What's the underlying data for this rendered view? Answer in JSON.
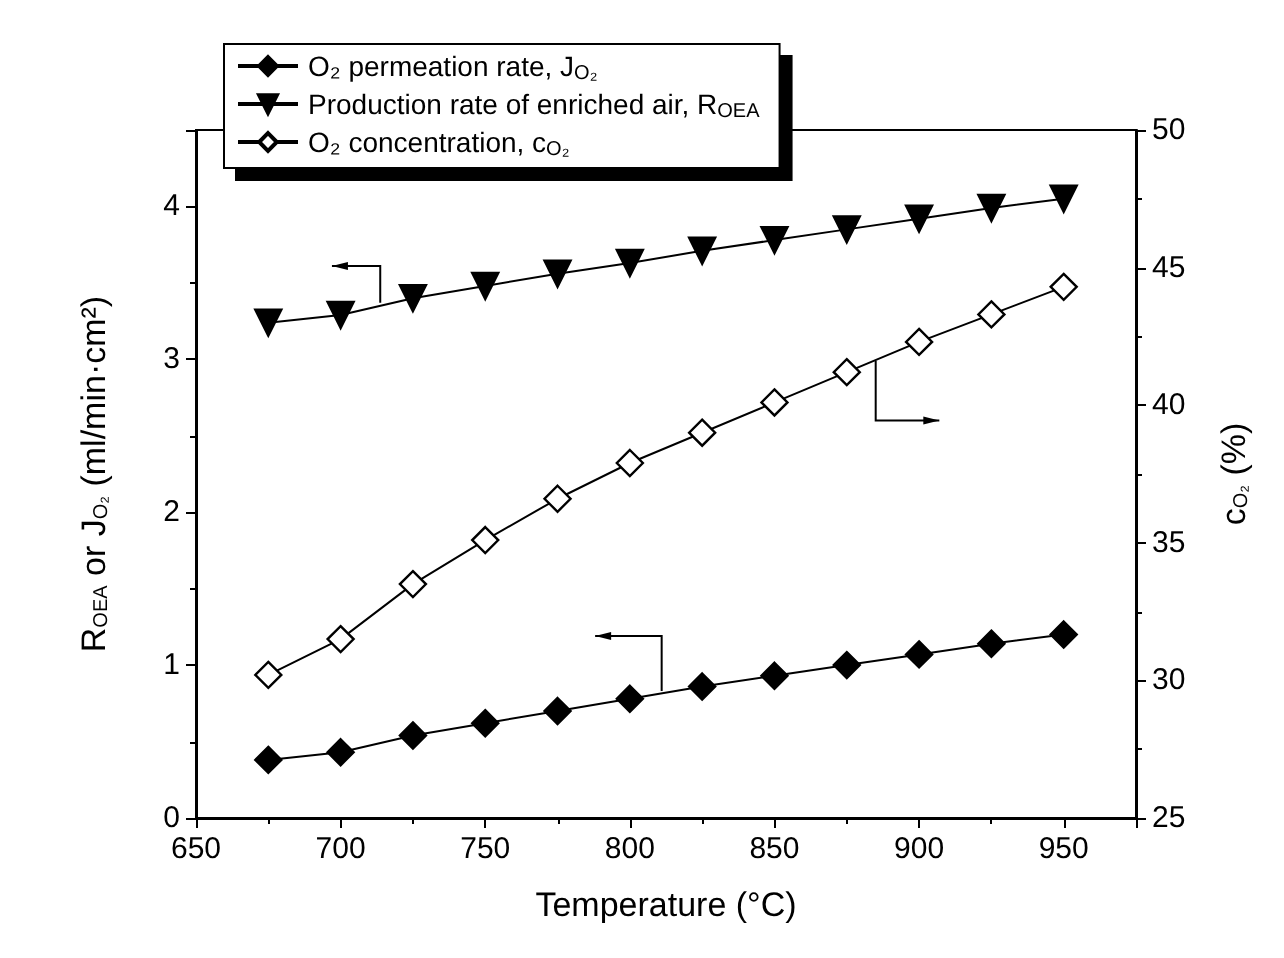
{
  "chart_data": {
    "type": "line",
    "xlabel": "Temperature (°C)",
    "ylabel": "R$_{OEA}$ or J$_{O₂}$ (ml/min·cm²)",
    "y2label": "c$_{O₂}$ (%)",
    "x": [
      675,
      700,
      725,
      750,
      775,
      800,
      825,
      850,
      875,
      900,
      925,
      950
    ],
    "series": [
      {
        "name": "O₂ permeation rate, J$_{O₂}$",
        "color": "#000000",
        "marker": "diamond",
        "values": [
          0.38,
          0.43,
          0.54,
          0.62,
          0.7,
          0.78,
          0.86,
          0.93,
          1.0,
          1.07,
          1.14,
          1.2
        ]
      },
      {
        "name": "Production rate of enriched air, R$_{OEA}$",
        "color": "#000000",
        "marker": "triangle",
        "values": [
          3.24,
          3.29,
          3.4,
          3.48,
          3.56,
          3.63,
          3.71,
          3.78,
          3.85,
          3.92,
          3.99,
          4.05
        ]
      },
      {
        "name": "O₂ concentration, c$_{O₂}$",
        "color": "#000000",
        "marker": "diamond",
        "colors": [
          "#ffffff",
          "#ffffff",
          "#ffffff",
          "#ffffff",
          "#ffffff",
          "#ffffff",
          "#ffffff",
          "#ffffff",
          "#ffffff",
          "#ffffff",
          "#ffffff",
          "#ffffff"
        ],
        "axis": "y2",
        "values": [
          30.2,
          31.5,
          33.5,
          35.1,
          36.6,
          37.9,
          39.0,
          40.1,
          41.2,
          42.3,
          43.3,
          44.3
        ]
      }
    ],
    "xlim": [
      650,
      975
    ],
    "xticks": [
      650,
      700,
      750,
      800,
      850,
      900,
      950
    ],
    "ylim": [
      0,
      4.5
    ],
    "yticks": [
      0,
      1,
      2,
      3,
      4
    ],
    "y2lim": [
      25,
      50
    ],
    "y2ticks": [
      25,
      30,
      35,
      40,
      45,
      50
    ],
    "grid": false,
    "legend": "top left",
    "line_style": "solid"
  }
}
